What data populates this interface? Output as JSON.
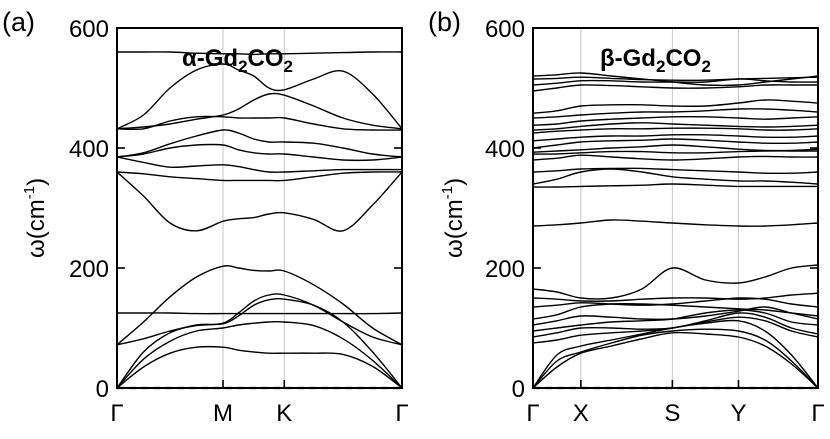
{
  "chart_data": [
    {
      "type": "line",
      "panel_label": "(a)",
      "title": {
        "prefix": "α-Gd",
        "sub1": "2",
        "mid": "CO",
        "sub2": "2"
      },
      "ylabel": {
        "main": "ω(cm",
        "sup": "-1",
        "close": ")"
      },
      "ylim": [
        0,
        600
      ],
      "yticks": [
        "0",
        "200",
        "400",
        "600"
      ],
      "kpoints": [
        {
          "label": "Γ",
          "x": 0
        },
        {
          "label": "M",
          "x": 0.372
        },
        {
          "label": "K",
          "x": 0.587
        },
        {
          "label": "Γ",
          "x": 1
        }
      ],
      "band_x": [
        0,
        0.093,
        0.186,
        0.279,
        0.372,
        0.426,
        0.48,
        0.533,
        0.587,
        0.69,
        0.793,
        0.897,
        1
      ],
      "bands": [
        [
          0,
          35,
          58,
          68,
          68,
          63,
          60,
          58,
          58,
          58,
          56,
          36,
          0
        ],
        [
          0,
          48,
          78,
          95,
          100,
          105,
          108,
          110,
          110,
          104,
          82,
          46,
          0
        ],
        [
          0,
          60,
          92,
          105,
          107,
          120,
          138,
          147,
          148,
          138,
          110,
          60,
          0
        ],
        [
          72,
          82,
          95,
          104,
          108,
          125,
          145,
          155,
          155,
          138,
          110,
          85,
          72
        ],
        [
          72,
          110,
          152,
          185,
          203,
          200,
          196,
          195,
          195,
          172,
          140,
          100,
          72
        ],
        [
          125,
          125,
          125,
          124,
          124,
          124,
          124,
          124,
          124,
          124,
          124,
          124,
          125
        ],
        [
          360,
          320,
          275,
          262,
          278,
          282,
          284,
          290,
          292,
          281,
          262,
          305,
          360
        ],
        [
          360,
          357,
          352,
          349,
          346,
          346,
          346,
          346,
          346,
          352,
          358,
          360,
          360
        ],
        [
          385,
          376,
          368,
          370,
          372,
          369,
          364,
          360,
          360,
          362,
          364,
          364,
          364
        ],
        [
          385,
          390,
          400,
          405,
          405,
          397,
          392,
          390,
          390,
          385,
          380,
          380,
          385
        ],
        [
          385,
          392,
          407,
          420,
          430,
          425,
          415,
          410,
          410,
          408,
          400,
          390,
          385
        ],
        [
          432,
          435,
          440,
          448,
          455,
          465,
          480,
          490,
          488,
          470,
          450,
          438,
          432
        ],
        [
          432,
          432,
          445,
          452,
          452,
          450,
          450,
          450,
          450,
          440,
          432,
          430,
          430
        ],
        [
          432,
          455,
          500,
          530,
          540,
          530,
          520,
          500,
          497,
          515,
          528,
          490,
          432
        ],
        [
          560,
          560,
          560,
          558,
          557,
          557,
          556,
          557,
          557,
          558,
          559,
          560,
          560
        ]
      ]
    },
    {
      "type": "line",
      "panel_label": "(b)",
      "title": {
        "prefix": "β-Gd",
        "sub1": "2",
        "mid": "CO",
        "sub2": "2"
      },
      "ylabel": {
        "main": "ω(cm",
        "sup": "-1",
        "close": ")"
      },
      "ylim": [
        0,
        600
      ],
      "yticks": [
        "0",
        "200",
        "400",
        "600"
      ],
      "kpoints": [
        {
          "label": "Γ",
          "x": 0
        },
        {
          "label": "X",
          "x": 0.168
        },
        {
          "label": "S",
          "x": 0.489
        },
        {
          "label": "Y",
          "x": 0.721
        },
        {
          "label": "Γ",
          "x": 1
        }
      ],
      "band_x": [
        0,
        0.084,
        0.168,
        0.275,
        0.382,
        0.489,
        0.605,
        0.721,
        0.814,
        0.907,
        1
      ],
      "bands": [
        [
          0,
          35,
          58,
          70,
          82,
          92,
          90,
          85,
          70,
          40,
          0
        ],
        [
          0,
          45,
          60,
          75,
          88,
          95,
          98,
          95,
          80,
          45,
          0
        ],
        [
          0,
          55,
          70,
          80,
          90,
          100,
          108,
          112,
          95,
          55,
          0
        ],
        [
          75,
          80,
          88,
          92,
          95,
          100,
          110,
          118,
          112,
          95,
          85
        ],
        [
          85,
          92,
          100,
          100,
          98,
          100,
          112,
          125,
          118,
          100,
          90
        ],
        [
          95,
          100,
          105,
          110,
          112,
          115,
          125,
          130,
          125,
          110,
          105
        ],
        [
          105,
          112,
          120,
          118,
          115,
          115,
          120,
          128,
          135,
          125,
          115
        ],
        [
          115,
          122,
          135,
          140,
          140,
          138,
          135,
          132,
          130,
          125,
          120
        ],
        [
          135,
          138,
          142,
          140,
          138,
          140,
          145,
          150,
          148,
          140,
          135
        ],
        [
          150,
          148,
          145,
          145,
          148,
          150,
          150,
          148,
          150,
          155,
          158
        ],
        [
          165,
          160,
          150,
          150,
          165,
          200,
          180,
          175,
          185,
          200,
          205
        ],
        [
          270,
          272,
          275,
          280,
          278,
          275,
          272,
          270,
          270,
          272,
          275
        ],
        [
          335,
          335,
          336,
          337,
          338,
          340,
          338,
          336,
          336,
          336,
          336
        ],
        [
          340,
          348,
          360,
          365,
          360,
          352,
          348,
          345,
          345,
          343,
          340
        ],
        [
          360,
          362,
          365,
          366,
          366,
          364,
          362,
          360,
          358,
          358,
          360
        ],
        [
          380,
          383,
          388,
          385,
          382,
          380,
          382,
          385,
          386,
          385,
          385
        ],
        [
          390,
          390,
          392,
          394,
          394,
          392,
          392,
          394,
          395,
          395,
          395
        ],
        [
          393,
          395,
          397,
          400,
          402,
          405,
          402,
          398,
          396,
          396,
          398
        ],
        [
          400,
          405,
          410,
          412,
          413,
          415,
          413,
          410,
          408,
          408,
          410
        ],
        [
          412,
          415,
          418,
          420,
          420,
          422,
          422,
          420,
          418,
          418,
          420
        ],
        [
          425,
          428,
          430,
          432,
          432,
          433,
          433,
          432,
          430,
          430,
          432
        ],
        [
          430,
          432,
          436,
          440,
          442,
          440,
          438,
          436,
          435,
          436,
          438
        ],
        [
          438,
          440,
          445,
          448,
          450,
          452,
          452,
          450,
          448,
          450,
          452
        ],
        [
          450,
          452,
          455,
          458,
          460,
          460,
          462,
          465,
          465,
          463,
          460
        ],
        [
          458,
          462,
          470,
          472,
          472,
          470,
          470,
          475,
          480,
          478,
          475
        ],
        [
          495,
          500,
          505,
          504,
          502,
          500,
          500,
          502,
          505,
          505,
          505
        ],
        [
          505,
          508,
          512,
          512,
          510,
          510,
          510,
          515,
          512,
          510,
          510
        ],
        [
          515,
          516,
          518,
          516,
          514,
          513,
          513,
          515,
          516,
          517,
          518
        ],
        [
          520,
          522,
          525,
          520,
          515,
          510,
          505,
          505,
          510,
          515,
          520
        ]
      ]
    }
  ]
}
